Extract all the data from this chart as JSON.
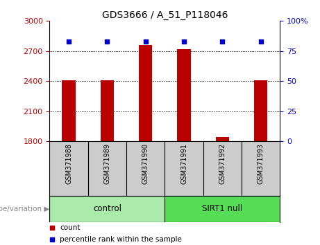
{
  "title": "GDS3666 / A_51_P118046",
  "samples": [
    "GSM371988",
    "GSM371989",
    "GSM371990",
    "GSM371991",
    "GSM371992",
    "GSM371993"
  ],
  "counts": [
    2410,
    2410,
    2760,
    2720,
    1840,
    2410
  ],
  "percentile_ranks": [
    83,
    83,
    83,
    83,
    83,
    83
  ],
  "ylim_left": [
    1800,
    3000
  ],
  "ylim_right": [
    0,
    100
  ],
  "yticks_left": [
    1800,
    2100,
    2400,
    2700,
    3000
  ],
  "yticks_right": [
    0,
    25,
    50,
    75,
    100
  ],
  "ytick_right_labels": [
    "0",
    "25",
    "50",
    "75",
    "100%"
  ],
  "bar_color": "#bb0000",
  "dot_color": "#0000cc",
  "groups": [
    {
      "label": "control",
      "indices": [
        0,
        1,
        2
      ],
      "color": "#aaeaaa"
    },
    {
      "label": "SIRT1 null",
      "indices": [
        3,
        4,
        5
      ],
      "color": "#55dd55"
    }
  ],
  "legend_count_color": "#bb0000",
  "legend_pct_color": "#0000cc",
  "grid_style": "dotted",
  "bg_color": "#ffffff",
  "label_bg": "#cccccc",
  "geno_label_color": "#888888",
  "bar_width": 0.35
}
